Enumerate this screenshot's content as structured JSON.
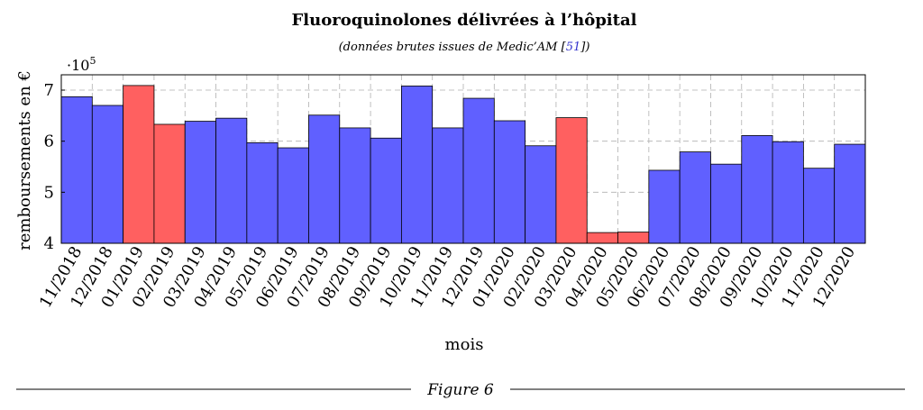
{
  "figure_caption": "Figure 6",
  "chart_data": {
    "type": "bar",
    "title": "Fluoroquinolones délivrées à l’hôpital",
    "subtitle_before": "(données brutes issues de Medic’AM [",
    "subtitle_ref": "51",
    "subtitle_after": "])",
    "xlabel": "mois",
    "ylabel": "remboursements en €",
    "y_scale_label": "·10",
    "y_scale_exponent": "5",
    "ylim": [
      4,
      7.3
    ],
    "yticks": [
      4,
      5,
      6,
      7
    ],
    "grid": true,
    "categories": [
      "11/2018",
      "12/2018",
      "01/2019",
      "02/2019",
      "03/2019",
      "04/2019",
      "05/2019",
      "06/2019",
      "07/2019",
      "08/2019",
      "09/2019",
      "10/2019",
      "11/2019",
      "12/2019",
      "01/2020",
      "02/2020",
      "03/2020",
      "04/2020",
      "05/2020",
      "06/2020",
      "07/2020",
      "08/2020",
      "09/2020",
      "10/2020",
      "11/2020",
      "12/2020"
    ],
    "values": [
      6.87,
      6.7,
      7.09,
      6.33,
      6.39,
      6.45,
      5.97,
      5.87,
      6.51,
      6.26,
      6.06,
      7.08,
      6.26,
      6.84,
      6.4,
      5.91,
      6.46,
      4.21,
      4.22,
      5.43,
      5.79,
      5.55,
      6.11,
      5.99,
      5.47,
      5.94
    ],
    "highlighted": [
      false,
      false,
      true,
      true,
      false,
      false,
      false,
      false,
      false,
      false,
      false,
      false,
      false,
      false,
      false,
      false,
      true,
      true,
      true,
      false,
      false,
      false,
      false,
      false,
      false,
      false
    ],
    "colors": {
      "normal": "#6060ff",
      "highlight": "#ff6060",
      "grid": "#b0b0b0"
    }
  }
}
